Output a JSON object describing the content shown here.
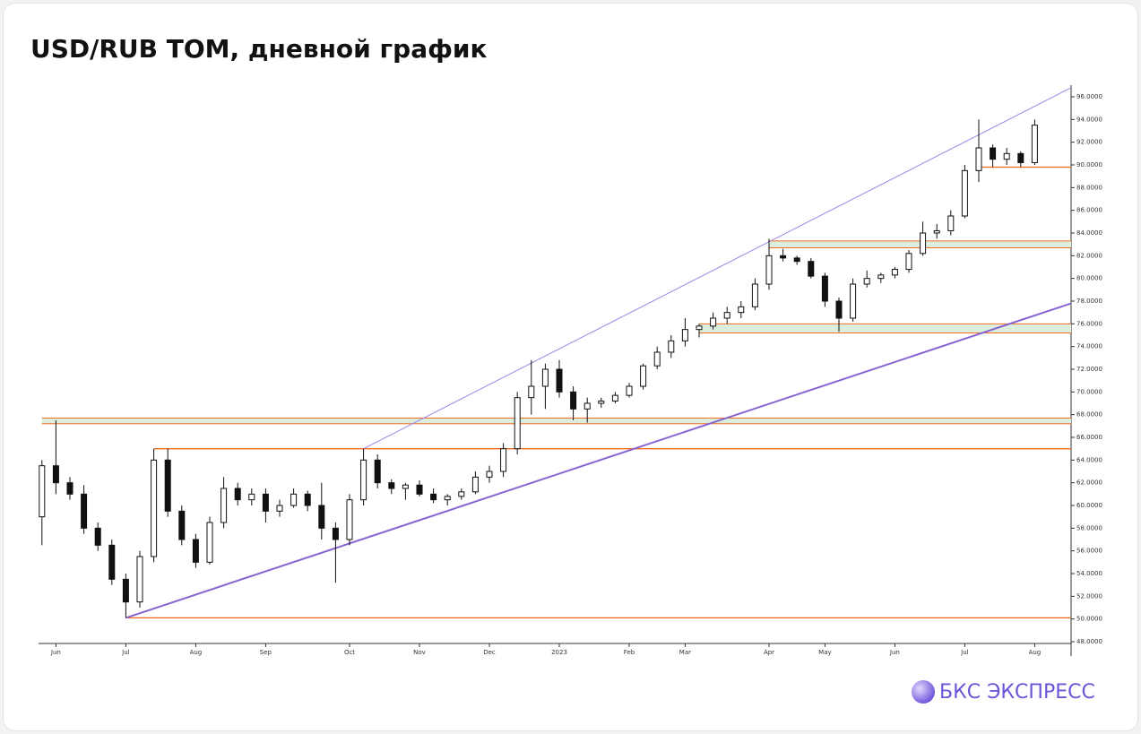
{
  "chart_data": {
    "type": "candlestick",
    "title": "USD/RUB TOM, дневной график",
    "logo": "БКС ЭКСПРЕСС",
    "categories": [
      null,
      "Jun",
      null,
      null,
      null,
      null,
      "Jul",
      null,
      null,
      null,
      null,
      "Aug",
      null,
      null,
      null,
      null,
      "Sep",
      null,
      null,
      null,
      null,
      null,
      "Oct",
      null,
      null,
      null,
      null,
      "Nov",
      null,
      null,
      null,
      null,
      "Dec",
      null,
      null,
      null,
      null,
      "2023",
      null,
      null,
      null,
      null,
      "Feb",
      null,
      null,
      null,
      "Mar",
      null,
      null,
      null,
      null,
      null,
      "Apr",
      null,
      null,
      null,
      "May",
      null,
      null,
      null,
      null,
      "Jun",
      null,
      null,
      null,
      null,
      "Jul",
      null,
      null,
      null,
      null,
      "Aug"
    ],
    "open": [
      59,
      63.5,
      62,
      61,
      58,
      56.5,
      53.5,
      51.5,
      55.5,
      64,
      59.5,
      57,
      55,
      58.5,
      61.5,
      60.5,
      61,
      59.5,
      60,
      61,
      60,
      58,
      57,
      60.5,
      64,
      62,
      61.5,
      61.8,
      61,
      60.5,
      60.8,
      61.2,
      62.5,
      63,
      65,
      69.5,
      70.5,
      72,
      70,
      68.5,
      69,
      69.2,
      69.7,
      70.5,
      72.3,
      73.5,
      74.5,
      75.5,
      75.8,
      76.5,
      77,
      77.5,
      79.5,
      82,
      81.8,
      81.5,
      80.2,
      78,
      76.5,
      79.5,
      80,
      80.3,
      80.8,
      82.2,
      84,
      84.2,
      85.5,
      89.5,
      91.5,
      90.5,
      91,
      90.2
    ],
    "high": [
      64,
      67.5,
      62.5,
      61.8,
      58.5,
      57,
      54,
      56,
      65,
      65,
      60,
      57.5,
      59,
      62.5,
      62,
      61.5,
      61.5,
      60.5,
      61.5,
      61.3,
      62,
      58.5,
      61,
      65,
      64.5,
      62.3,
      62,
      62.2,
      61.5,
      61,
      61.5,
      63,
      63.5,
      65.5,
      70,
      72.8,
      72.5,
      72.8,
      70.5,
      69.5,
      69.5,
      70,
      70.8,
      72.5,
      74,
      75,
      76.5,
      76,
      77,
      77.5,
      78,
      80,
      83.5,
      82.6,
      82,
      81.8,
      80.5,
      78.3,
      80,
      80.7,
      80.5,
      81,
      82.5,
      85,
      84.8,
      86,
      90,
      94,
      91.8,
      91.5,
      91.2,
      94
    ],
    "low": [
      56.5,
      61,
      60.5,
      57.5,
      56,
      53,
      50.1,
      51,
      55,
      59,
      56.5,
      54.5,
      54.8,
      58,
      60,
      60,
      58.5,
      59,
      59.8,
      59.5,
      57,
      53.2,
      56.5,
      60,
      61.5,
      61,
      60.5,
      60.8,
      60.2,
      60,
      60.5,
      61,
      62,
      62.5,
      64.5,
      68,
      68.5,
      69.5,
      67.5,
      67.3,
      68.6,
      69,
      69.5,
      70.2,
      72,
      73,
      74,
      74.8,
      75.5,
      76,
      76.5,
      77.2,
      79,
      81.5,
      81.2,
      80,
      77.5,
      75.3,
      76.2,
      79.2,
      79.6,
      80,
      80.5,
      82,
      83.5,
      83.8,
      85.3,
      88.5,
      89.8,
      90,
      89.8,
      90
    ],
    "close": [
      63.5,
      62,
      61,
      58,
      56.5,
      53.5,
      51.5,
      55.5,
      64,
      59.5,
      57,
      55,
      58.5,
      61.5,
      60.5,
      61,
      59.5,
      60,
      61,
      60,
      58,
      57,
      60.5,
      64,
      62,
      61.5,
      61.8,
      61,
      60.5,
      60.8,
      61.2,
      62.5,
      63,
      65,
      69.5,
      70.5,
      72,
      70,
      68.5,
      69,
      69.2,
      69.7,
      70.5,
      72.3,
      73.5,
      74.5,
      75.5,
      75.8,
      76.5,
      77,
      77.5,
      79.5,
      82,
      81.8,
      81.5,
      80.2,
      78,
      76.5,
      79.5,
      80,
      80.3,
      80.8,
      82.2,
      84,
      84.2,
      85.5,
      89.5,
      91.5,
      90.5,
      91,
      90.2,
      93.5
    ],
    "up_color": "#ffffff",
    "down_color": "#111111",
    "levels": [
      {
        "from": 6,
        "value": 50.1
      },
      {
        "from": 8,
        "value": 65
      },
      {
        "from": 67,
        "value": 89.8
      }
    ],
    "zones": [
      {
        "from": 0,
        "low": 67.2,
        "high": 67.7
      },
      {
        "from": 47,
        "low": 75.2,
        "high": 76
      },
      {
        "from": 52,
        "low": 82.7,
        "high": 83.3
      }
    ],
    "level_color": "#f26b21",
    "zone_color": "#dcefdf",
    "trendlines": [
      {
        "points": [
          [
            6,
            50.1
          ],
          [
            73.6,
            77.8
          ]
        ],
        "color": "#8a63d2",
        "width": 2
      },
      {
        "points": [
          [
            23,
            65
          ],
          [
            73.6,
            96.8
          ]
        ],
        "color": "#9a86e6",
        "width": 1
      }
    ],
    "ylim": [
      48,
      96
    ],
    "yticks": [
      {
        "value": 48,
        "label": "48.0000"
      },
      {
        "value": 50,
        "label": "50.0000"
      },
      {
        "value": 52,
        "label": "52.0000"
      },
      {
        "value": 54,
        "label": "54.0000"
      },
      {
        "value": 56,
        "label": "56.0000"
      },
      {
        "value": 58,
        "label": "58.0000"
      },
      {
        "value": 60,
        "label": "60.0000"
      },
      {
        "value": 62,
        "label": "62.0000"
      },
      {
        "value": 64,
        "label": "64.0000"
      },
      {
        "value": 66,
        "label": "66.0000"
      },
      {
        "value": 68,
        "label": "68.0000"
      },
      {
        "value": 70,
        "label": "70.0000"
      },
      {
        "value": 72,
        "label": "72.0000"
      },
      {
        "value": 74,
        "label": "74.0000"
      },
      {
        "value": 76,
        "label": "76.0000"
      },
      {
        "value": 78,
        "label": "78.0000"
      },
      {
        "value": 80,
        "label": "80.0000"
      },
      {
        "value": 82,
        "label": "82.0000"
      },
      {
        "value": 84,
        "label": "84.0000"
      },
      {
        "value": 86,
        "label": "86.0000"
      },
      {
        "value": 88,
        "label": "88.0000"
      },
      {
        "value": 90,
        "label": "90.0000"
      },
      {
        "value": 92,
        "label": "92.0000"
      },
      {
        "value": 94,
        "label": "94.0000"
      },
      {
        "value": 96,
        "label": "96.0000"
      }
    ]
  }
}
